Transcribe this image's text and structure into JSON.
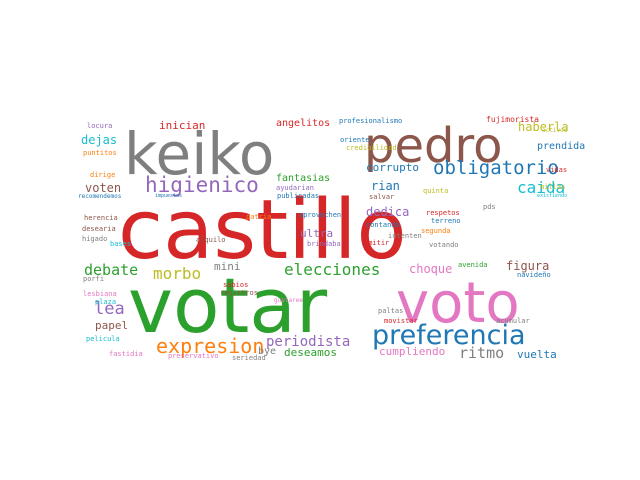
{
  "words": [
    {
      "text": "castillo",
      "color": "#d62728"
    },
    {
      "text": "votar",
      "color": "#2ca02c"
    },
    {
      "text": "voto",
      "color": "#e377c2"
    },
    {
      "text": "keiko",
      "color": "#7f7f7f"
    },
    {
      "text": "pedro",
      "color": "#8c564b"
    },
    {
      "text": "preferencia",
      "color": "#1f77b4"
    },
    {
      "text": "higienico",
      "color": "#9467bd"
    },
    {
      "text": "obligatorio",
      "color": "#1f77b4"
    },
    {
      "text": "expresion",
      "color": "#ff7f0e"
    },
    {
      "text": "elecciones",
      "color": "#2ca02c"
    },
    {
      "text": "morbo",
      "color": "#bcbd22"
    },
    {
      "text": "debate",
      "color": "#2ca02c"
    },
    {
      "text": "caida",
      "color": "#17becf"
    },
    {
      "text": "lea",
      "color": "#9467bd"
    },
    {
      "text": "periodista",
      "color": "#9467bd"
    },
    {
      "text": "ritmo",
      "color": "#7f7f7f"
    },
    {
      "text": "inician",
      "color": "#d62728"
    },
    {
      "text": "angelitos",
      "color": "#d62728"
    },
    {
      "text": "haberla",
      "color": "#bcbd22"
    },
    {
      "text": "corrupto",
      "color": "#1f77b4"
    },
    {
      "text": "dejas",
      "color": "#17becf"
    },
    {
      "text": "prendida",
      "color": "#1f77b4"
    },
    {
      "text": "fantasias",
      "color": "#2ca02c"
    },
    {
      "text": "voten",
      "color": "#8c564b"
    },
    {
      "text": "rian",
      "color": "#1f77b4"
    },
    {
      "text": "dedica",
      "color": "#9467bd"
    },
    {
      "text": "ultra",
      "color": "#9467bd"
    },
    {
      "text": "choque",
      "color": "#e377c2"
    },
    {
      "text": "figura",
      "color": "#8c564b"
    },
    {
      "text": "mini",
      "color": "#7f7f7f"
    },
    {
      "text": "papel",
      "color": "#8c564b"
    },
    {
      "text": "deseamos",
      "color": "#2ca02c"
    },
    {
      "text": "cumpliendo",
      "color": "#e377c2"
    },
    {
      "text": "vuelta",
      "color": "#1f77b4"
    },
    {
      "text": "bye",
      "color": "#7f7f7f"
    },
    {
      "text": "profesionalismo",
      "color": "#1f77b4"
    },
    {
      "text": "fujimorista",
      "color": "#d62728"
    },
    {
      "text": "oriente",
      "color": "#1f77b4"
    },
    {
      "text": "credibilidad",
      "color": "#bcbd22"
    },
    {
      "text": "locura",
      "color": "#9467bd"
    },
    {
      "text": "puntitos",
      "color": "#ff7f0e"
    },
    {
      "text": "activos",
      "color": "#bcbd22"
    },
    {
      "text": "vidas",
      "color": "#d62728"
    },
    {
      "text": "quinta",
      "color": "#bcbd22"
    },
    {
      "text": "millas",
      "color": "#bcbd22"
    },
    {
      "text": "dirige",
      "color": "#ff7f0e"
    },
    {
      "text": "ayudarian",
      "color": "#9467bd"
    },
    {
      "text": "publicadas",
      "color": "#1f77b4"
    },
    {
      "text": "salvar",
      "color": "#8c564b"
    },
    {
      "text": "existiendo",
      "color": "#17becf"
    },
    {
      "text": "recomendemos",
      "color": "#1f77b4"
    },
    {
      "text": "impuestos",
      "color": "#1f77b4"
    },
    {
      "text": "herencia",
      "color": "#8c564b"
    },
    {
      "text": "patria",
      "color": "#ff7f0e"
    },
    {
      "text": "aprovechen",
      "color": "#1f77b4"
    },
    {
      "text": "respetos",
      "color": "#d62728"
    },
    {
      "text": "pds",
      "color": "#7f7f7f"
    },
    {
      "text": "desearia",
      "color": "#8c564b"
    },
    {
      "text": "higado",
      "color": "#7f7f7f"
    },
    {
      "text": "bases",
      "color": "#17becf"
    },
    {
      "text": "alquilo",
      "color": "#8c564b"
    },
    {
      "text": "brindaba",
      "color": "#9467bd"
    },
    {
      "text": "contando",
      "color": "#1f77b4"
    },
    {
      "text": "emitir",
      "color": "#d62728"
    },
    {
      "text": "segunda",
      "color": "#ff7f0e"
    },
    {
      "text": "terreno",
      "color": "#1f77b4"
    },
    {
      "text": "intenten",
      "color": "#7f7f7f"
    },
    {
      "text": "votando",
      "color": "#7f7f7f"
    },
    {
      "text": "porfi",
      "color": "#7f7f7f"
    },
    {
      "text": "sabios",
      "color": "#d62728"
    },
    {
      "text": "registros",
      "color": "#8c564b"
    },
    {
      "text": "avenida",
      "color": "#2ca02c"
    },
    {
      "text": "navideño",
      "color": "#1f77b4"
    },
    {
      "text": "lesbiana",
      "color": "#e377c2"
    },
    {
      "text": "plaza",
      "color": "#17becf"
    },
    {
      "text": "gustaree",
      "color": "#e377c2"
    },
    {
      "text": "paltas",
      "color": "#7f7f7f"
    },
    {
      "text": "movistar",
      "color": "#d62728"
    },
    {
      "text": "acumular",
      "color": "#7f7f7f"
    },
    {
      "text": "pelicula",
      "color": "#17becf"
    },
    {
      "text": "fastidia",
      "color": "#e377c2"
    },
    {
      "text": "preservativo",
      "color": "#e377c2"
    },
    {
      "text": "seriedad",
      "color": "#7f7f7f"
    }
  ]
}
